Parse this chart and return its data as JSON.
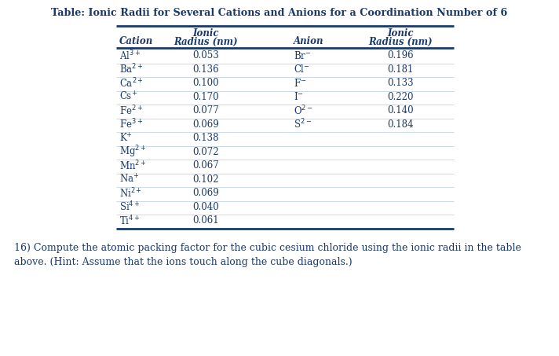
{
  "title": "Table: Ionic Radii for Several Cations and Anions for a Coordination Number of 6",
  "title_color": "#1a3a6b",
  "header_color": "#1a3a6b",
  "text_color": "#1a3a6b",
  "line_color": "#1a3a6b",
  "sep_color": "#c5d5e8",
  "background_color": "#ffffff",
  "cations": [
    [
      "Al$^{3+}$",
      "0.053"
    ],
    [
      "Ba$^{2+}$",
      "0.136"
    ],
    [
      "Ca$^{2+}$",
      "0.100"
    ],
    [
      "Cs$^{+}$",
      "0.170"
    ],
    [
      "Fe$^{2+}$",
      "0.077"
    ],
    [
      "Fe$^{3+}$",
      "0.069"
    ],
    [
      "K$^{+}$",
      "0.138"
    ],
    [
      "Mg$^{2+}$",
      "0.072"
    ],
    [
      "Mn$^{2+}$",
      "0.067"
    ],
    [
      "Na$^{+}$",
      "0.102"
    ],
    [
      "Ni$^{2+}$",
      "0.069"
    ],
    [
      "Si$^{4+}$",
      "0.040"
    ],
    [
      "Ti$^{4+}$",
      "0.061"
    ]
  ],
  "anions": [
    [
      "Br$^{-}$",
      "0.196"
    ],
    [
      "Cl$^{-}$",
      "0.181"
    ],
    [
      "F$^{-}$",
      "0.133"
    ],
    [
      "I$^{-}$",
      "0.220"
    ],
    [
      "O$^{2-}$",
      "0.140"
    ],
    [
      "S$^{2-}$",
      "0.184"
    ]
  ],
  "footer_text": "16) Compute the atomic packing factor for the cubic cesium chloride using the ionic radii in the table\nabove. (Hint: Assume that the ions touch along the cube diagonals.)"
}
